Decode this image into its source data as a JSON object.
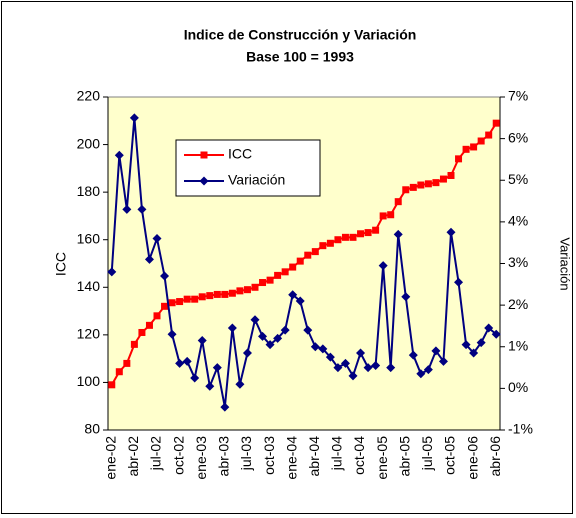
{
  "chart_data": {
    "type": "line",
    "title": "Indice de Construcción y Variación",
    "subtitle": "Base 100 = 1993",
    "y_label": "ICC",
    "y2_label": "Variación",
    "categories": [
      "ene-02",
      null,
      null,
      "abr-02",
      null,
      null,
      "jul-02",
      null,
      null,
      "oct-02",
      null,
      null,
      "ene-03",
      null,
      null,
      "abr-03",
      null,
      null,
      "jul-03",
      null,
      null,
      "oct-03",
      null,
      null,
      "ene-04",
      null,
      null,
      "abr-04",
      null,
      null,
      "jul-04",
      null,
      null,
      "oct-04",
      null,
      null,
      "ene-05",
      null,
      null,
      "abr-05",
      null,
      null,
      "jul-05",
      null,
      null,
      "oct-05",
      null,
      null,
      "ene-06",
      null,
      null,
      "abr-06"
    ],
    "series": [
      {
        "name": "ICC",
        "color": "#ff0000",
        "marker": "square",
        "values": [
          99,
          104.5,
          108,
          116,
          121,
          124,
          128,
          132,
          133.5,
          134,
          135,
          135,
          136,
          136.5,
          137,
          137,
          137.5,
          138.5,
          139,
          140,
          142,
          143,
          145,
          146.5,
          148.5,
          151,
          153.5,
          155,
          157.5,
          158.5,
          160,
          161,
          161,
          162.5,
          163,
          164,
          170,
          170.5,
          176,
          181,
          182,
          183,
          183.5,
          184,
          185.5,
          187,
          194,
          198,
          199,
          201.5,
          204,
          209
        ]
      },
      {
        "name": "Variación",
        "color": "#000080",
        "marker": "diamond",
        "axis": "y2",
        "values": [
          2.8,
          5.6,
          4.3,
          6.5,
          4.3,
          3.1,
          3.6,
          2.7,
          1.3,
          0.6,
          0.65,
          0.25,
          1.15,
          0.05,
          0.5,
          -0.45,
          1.45,
          0.1,
          0.85,
          1.65,
          1.25,
          1.05,
          1.2,
          1.4,
          2.25,
          2.1,
          1.4,
          1.0,
          0.95,
          0.75,
          0.5,
          0.6,
          0.3,
          0.85,
          0.5,
          0.55,
          2.95,
          0.5,
          3.7,
          2.2,
          0.8,
          0.35,
          0.45,
          0.9,
          0.65,
          3.75,
          2.55,
          1.05,
          0.85,
          1.1,
          1.45,
          1.3
        ]
      }
    ],
    "ylim": [
      80,
      220
    ],
    "yticks": [
      80,
      100,
      120,
      140,
      160,
      180,
      200,
      220
    ],
    "y2lim": [
      -1,
      7
    ],
    "y2ticks": [
      {
        "value": -1,
        "label": "-1%"
      },
      {
        "value": 0,
        "label": "0%"
      },
      {
        "value": 1,
        "label": "1%"
      },
      {
        "value": 2,
        "label": "2%"
      },
      {
        "value": 3,
        "label": "3%"
      },
      {
        "value": 4,
        "label": "4%"
      },
      {
        "value": 5,
        "label": "5%"
      },
      {
        "value": 6,
        "label": "6%"
      },
      {
        "value": 7,
        "label": "7%"
      }
    ],
    "plot_background": "#ffffcc",
    "legend": "upper left"
  }
}
